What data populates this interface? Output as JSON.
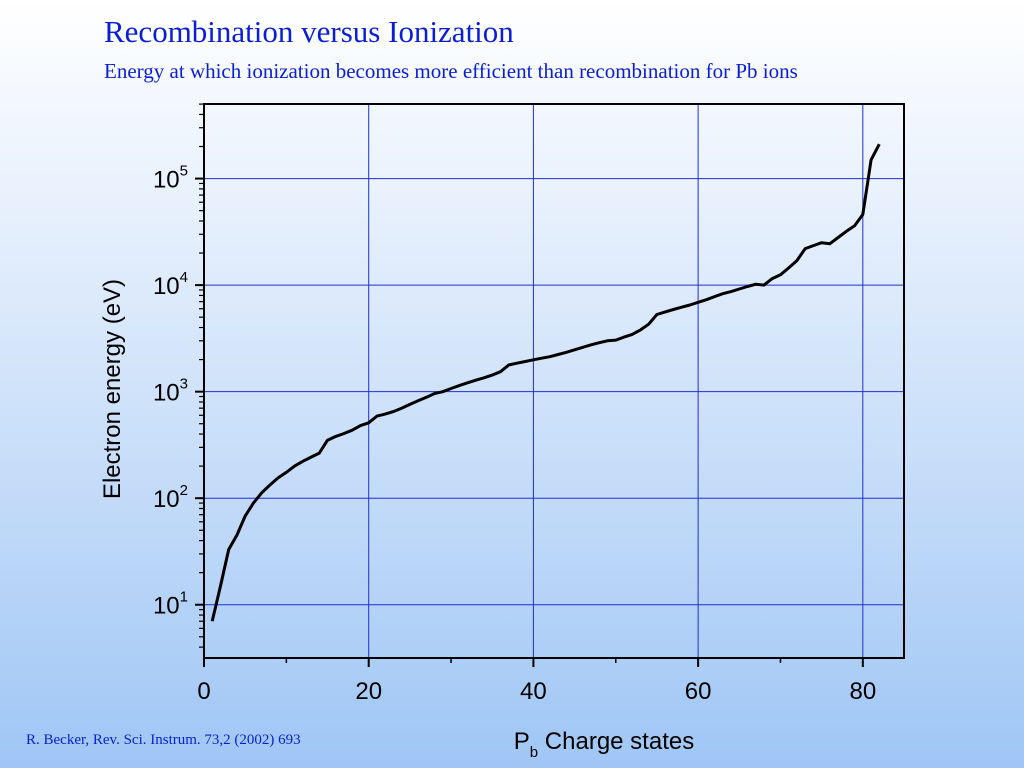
{
  "slide": {
    "title": "Recombination versus Ionization",
    "subtitle": "Energy at which ionization becomes more efficient than recombination for Pb ions",
    "citation": "R. Becker, Rev. Sci. Instrum. 73,2 (2002) 693"
  },
  "colors": {
    "heading": "#0a1ed8",
    "grid": "#1f2fd0",
    "line": "#000000",
    "background_top": "#ffffff",
    "background_bottom": "#9fc6f5"
  },
  "chart_data": {
    "type": "line",
    "xlabel_main": "P",
    "xlabel_sub": "b",
    "xlabel_rest": " Charge states",
    "ylabel": "Electron energy (eV)",
    "xlim": [
      0,
      85
    ],
    "ylim_exponent": [
      0.5,
      5.7
    ],
    "yscale": "log",
    "grid": true,
    "x_ticks": [
      "0",
      "20",
      "40",
      "60",
      "80"
    ],
    "y_ticks": [
      {
        "base": "10",
        "exp": "1"
      },
      {
        "base": "10",
        "exp": "2"
      },
      {
        "base": "10",
        "exp": "3"
      },
      {
        "base": "10",
        "exp": "4"
      },
      {
        "base": "10",
        "exp": "5"
      }
    ],
    "x": [
      1,
      2,
      3,
      4,
      5,
      6,
      7,
      8,
      9,
      10,
      11,
      12,
      13,
      14,
      15,
      16,
      17,
      18,
      19,
      20,
      21,
      22,
      23,
      24,
      25,
      26,
      27,
      28,
      29,
      30,
      31,
      32,
      33,
      34,
      35,
      36,
      37,
      38,
      39,
      40,
      41,
      42,
      43,
      44,
      45,
      46,
      47,
      48,
      49,
      50,
      51,
      52,
      53,
      54,
      55,
      56,
      57,
      58,
      59,
      60,
      61,
      62,
      63,
      64,
      65,
      66,
      67,
      68,
      69,
      70,
      71,
      72,
      73,
      74,
      75,
      76,
      77,
      78,
      79,
      80,
      81,
      82
    ],
    "y": [
      7,
      15,
      33,
      45,
      68,
      90,
      112,
      133,
      155,
      175,
      200,
      222,
      243,
      265,
      350,
      380,
      405,
      435,
      480,
      510,
      590,
      615,
      650,
      700,
      760,
      820,
      885,
      960,
      1000,
      1070,
      1140,
      1210,
      1280,
      1350,
      1430,
      1540,
      1780,
      1850,
      1920,
      1990,
      2060,
      2130,
      2230,
      2340,
      2470,
      2610,
      2750,
      2880,
      3000,
      3050,
      3250,
      3450,
      3800,
      4300,
      5300,
      5600,
      5900,
      6200,
      6500,
      6900,
      7300,
      7800,
      8300,
      8700,
      9200,
      9700,
      10200,
      10000,
      11500,
      12500,
      14500,
      17000,
      22000,
      23500,
      25000,
      24500,
      28000,
      32000,
      36000,
      46000,
      150000,
      210000
    ]
  }
}
